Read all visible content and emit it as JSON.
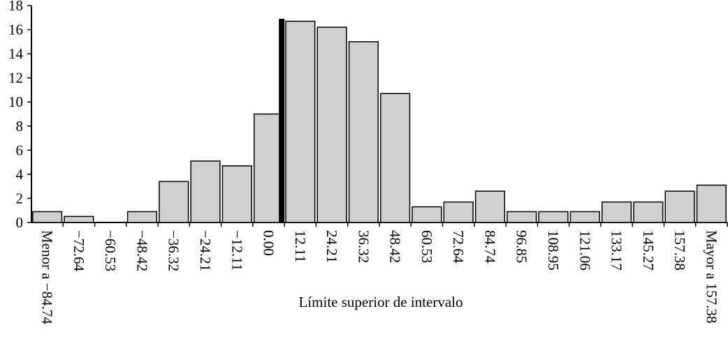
{
  "chart_data": {
    "type": "bar",
    "x_label": "Límite superior de intervalo",
    "categories": [
      "Menor a −84.74",
      "−72.64",
      "−60.53",
      "−48.42",
      "−36.32",
      "−24.21",
      "−12.11",
      "0.00",
      "12.11",
      "24.21",
      "36.32",
      "48.42",
      "60.53",
      "72.64",
      "84.74",
      "96.85",
      "108.95",
      "121.06",
      "133.17",
      "145.27",
      "157.38",
      "Mayor a 157.38"
    ],
    "values": [
      0.9,
      0.5,
      0,
      0.9,
      3.4,
      5.1,
      4.7,
      9.0,
      16.7,
      16.2,
      15.0,
      10.7,
      1.3,
      1.7,
      2.6,
      0.9,
      0.9,
      0.9,
      1.7,
      1.7,
      2.6,
      3.1
    ],
    "color": "#d0d0d0",
    "marker": {
      "after_category": 7,
      "value": 16.9,
      "color": "#000000"
    },
    "ylim": [
      0,
      18
    ],
    "yticks": [
      0,
      2,
      4,
      6,
      8,
      10,
      12,
      14,
      16,
      18
    ]
  }
}
